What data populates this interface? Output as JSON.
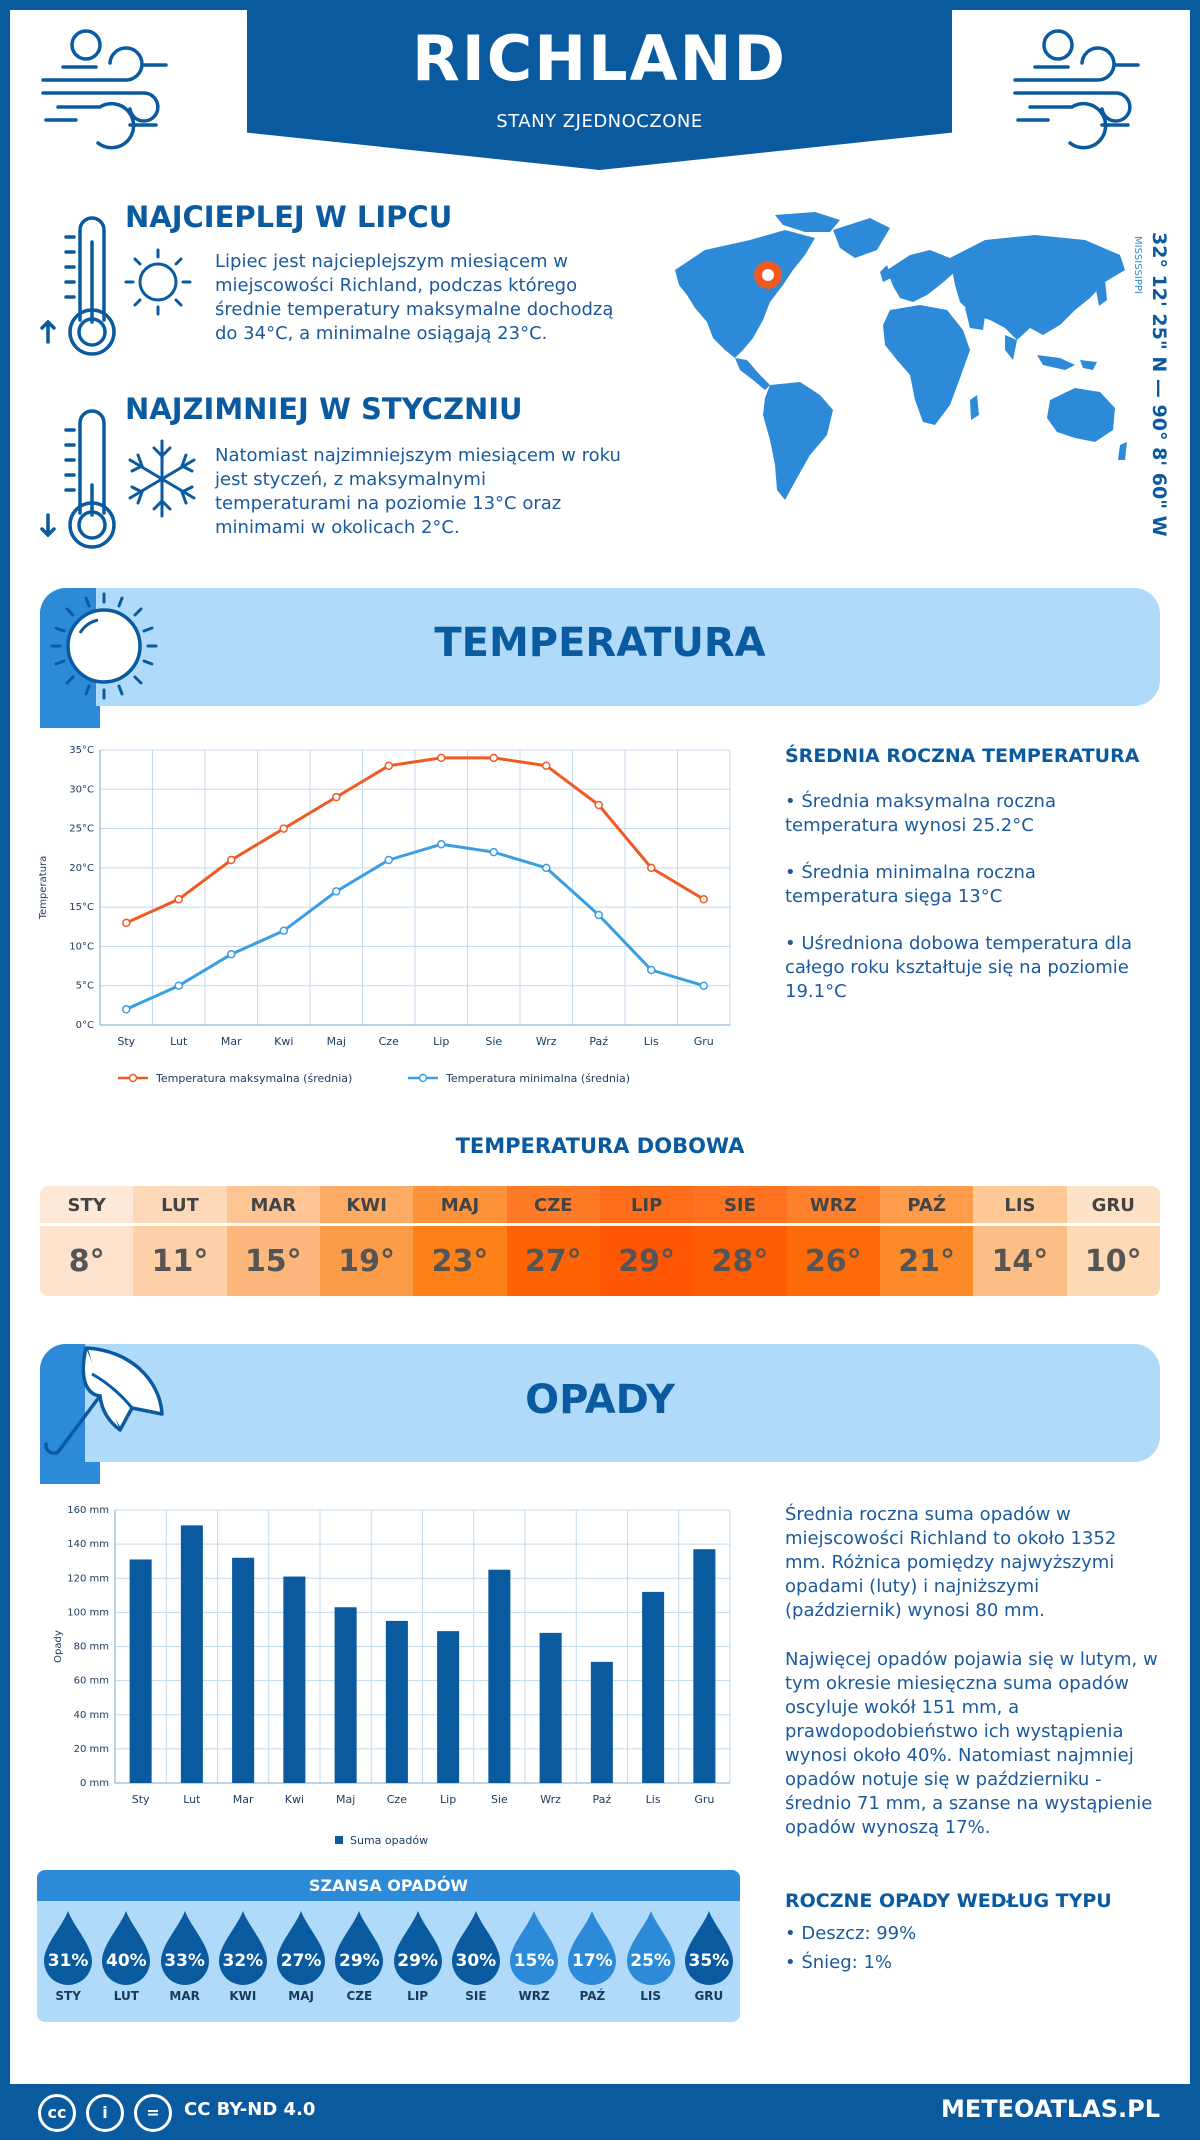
{
  "header": {
    "title": "RICHLAND",
    "subtitle": "STANY ZJEDNOCZONE"
  },
  "hottest": {
    "title": "NAJCIEPLEJ W LIPCU",
    "text": "Lipiec jest najcieplejszym miesiącem w miejscowości Richland, podczas którego średnie temperatury maksymalne dochodzą do 34°C, a minimalne osiągają 23°C."
  },
  "coldest": {
    "title": "NAJZIMNIEJ W STYCZNIU",
    "text": "Natomiast najzimniejszym miesiącem w roku jest styczeń, z maksymalnymi temperaturami na poziomie 13°C oraz minimami w okolicach 2°C."
  },
  "coords": {
    "text": "32° 12' 25\" N — 90° 8' 60\" W",
    "state": "MISSISSIPPI"
  },
  "temperature_section": {
    "title": "TEMPERATURA"
  },
  "temperature_chart": {
    "type": "line",
    "categories": [
      "Sty",
      "Lut",
      "Mar",
      "Kwi",
      "Maj",
      "Cze",
      "Lip",
      "Sie",
      "Wrz",
      "Paź",
      "Lis",
      "Gru"
    ],
    "series": [
      {
        "name": "Temperatura maksymalna (średnia)",
        "values": [
          13,
          16,
          21,
          25,
          29,
          33,
          34,
          34,
          33,
          28,
          20,
          16
        ],
        "color": "#ef5a23"
      },
      {
        "name": "Temperatura minimalna (średnia)",
        "values": [
          2,
          5,
          9,
          12,
          17,
          21,
          23,
          22,
          20,
          14,
          7,
          5
        ],
        "color": "#3a9ee0"
      }
    ],
    "ylabel": "Temperatura",
    "ylim": [
      0,
      35
    ],
    "yticks": [
      "0°C",
      "5°C",
      "10°C",
      "15°C",
      "20°C",
      "25°C",
      "30°C",
      "35°C"
    ],
    "legend": "bottom"
  },
  "annual_temp": {
    "title": "ŚREDNIA ROCZNA TEMPERATURA",
    "items": [
      "• Średnia maksymalna roczna temperatura wynosi 25.2°C",
      "• Średnia minimalna roczna temperatura sięga 13°C",
      "• Uśredniona dobowa temperatura dla całego roku kształtuje się na poziomie 19.1°C"
    ]
  },
  "daily_temp": {
    "title": "TEMPERATURA DOBOWA",
    "months": [
      "STY",
      "LUT",
      "MAR",
      "KWI",
      "MAJ",
      "CZE",
      "LIP",
      "SIE",
      "WRZ",
      "PAŹ",
      "LIS",
      "GRU"
    ],
    "values": [
      "8°",
      "11°",
      "15°",
      "19°",
      "23°",
      "27°",
      "29°",
      "28°",
      "26°",
      "21°",
      "14°",
      "10°"
    ],
    "colors": [
      "#fde3cd",
      "#fdd0a8",
      "#fdb77c",
      "#fd9c48",
      "#fd8117",
      "#fe6405",
      "#fe5602",
      "#fe5c03",
      "#fe6b06",
      "#fd8a28",
      "#fdbe85",
      "#fed9b5"
    ],
    "head_colors": [
      "#fee9d8",
      "#fed9b9",
      "#fec494",
      "#feab66",
      "#fe933c",
      "#fe7a26",
      "#fe6d1a",
      "#fe7220",
      "#fe7f2c",
      "#fe9c4b",
      "#fec897",
      "#fee2c6"
    ]
  },
  "precip_section": {
    "title": "OPADY"
  },
  "precip_chart": {
    "type": "bar",
    "categories": [
      "Sty",
      "Lut",
      "Mar",
      "Kwi",
      "Maj",
      "Cze",
      "Lip",
      "Sie",
      "Wrz",
      "Paź",
      "Lis",
      "Gru"
    ],
    "series": [
      {
        "name": "Suma opadów",
        "values": [
          131,
          151,
          132,
          121,
          103,
          95,
          89,
          125,
          88,
          71,
          112,
          137
        ],
        "color": "#0a5aa0"
      }
    ],
    "ylabel": "Opady",
    "ylim": [
      0,
      160
    ],
    "yticks": [
      "0 mm",
      "20 mm",
      "40 mm",
      "60 mm",
      "80 mm",
      "100 mm",
      "120 mm",
      "140 mm",
      "160 mm"
    ],
    "legend": "bottom"
  },
  "precip_text": {
    "p1": "Średnia roczna suma opadów w miejscowości Richland to około 1352 mm. Różnica pomiędzy najwyższymi opadami (luty) i najniższymi (październik) wynosi 80 mm.",
    "p2": "Najwięcej opadów pojawia się w lutym, w tym okresie miesięczna suma opadów oscyluje wokół 151 mm, a prawdopodobieństwo ich wystąpienia wynosi około 40%. Natomiast najmniej opadów notuje się w październiku - średnio 71 mm, a szanse na wystąpienie opadów wynoszą 17%."
  },
  "rain_chance": {
    "title": "SZANSA OPADÓW",
    "months": [
      "STY",
      "LUT",
      "MAR",
      "KWI",
      "MAJ",
      "CZE",
      "LIP",
      "SIE",
      "WRZ",
      "PAŹ",
      "LIS",
      "GRU"
    ],
    "values": [
      "31%",
      "40%",
      "33%",
      "32%",
      "27%",
      "29%",
      "29%",
      "30%",
      "15%",
      "17%",
      "25%",
      "35%"
    ],
    "drop_colors": [
      "#0a5aa0",
      "#0a5aa0",
      "#0a5aa0",
      "#0a5aa0",
      "#0a5aa0",
      "#0a5aa0",
      "#0a5aa0",
      "#0a5aa0",
      "#2d8ad8",
      "#2d8ad8",
      "#2d8ad8",
      "#0a5aa0"
    ]
  },
  "precip_types": {
    "title": "ROCZNE OPADY WEDŁUG TYPU",
    "items": [
      "• Deszcz: 99%",
      "• Śnieg: 1%"
    ]
  },
  "footer": {
    "license": "CC BY-ND 4.0",
    "site": "METEOATLAS.PL",
    "cc_labels": [
      "cc",
      "i",
      "="
    ]
  },
  "colors": {
    "primary": "#0a5aa0",
    "accent": "#2d8ad8",
    "light": "#b0daf9",
    "max_line": "#ef5a23",
    "min_line": "#3a9ee0"
  }
}
